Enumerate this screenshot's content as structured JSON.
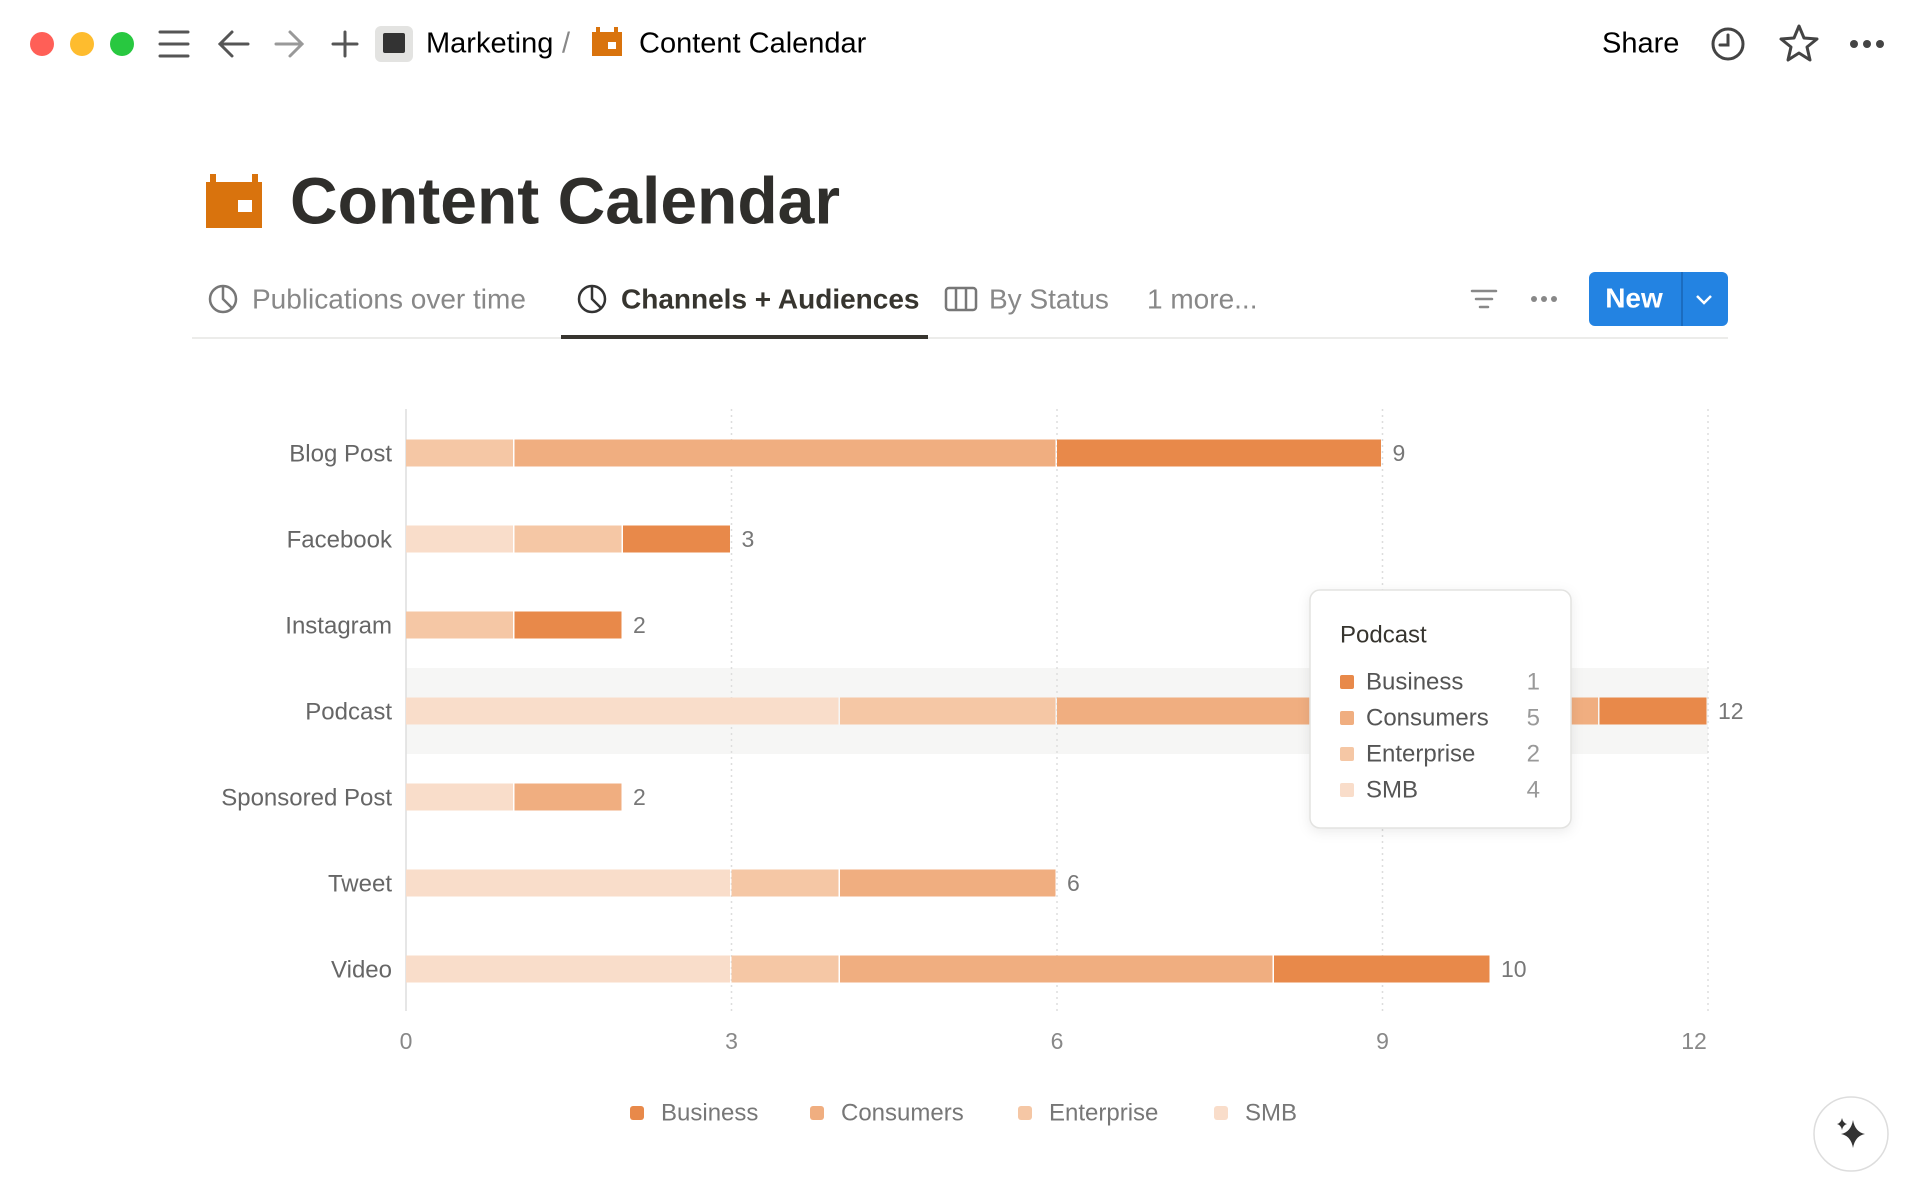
{
  "breadcrumb": {
    "parent": "Marketing",
    "separator": "/",
    "current": "Content Calendar"
  },
  "toolbar": {
    "share": "Share"
  },
  "page": {
    "title": "Content Calendar"
  },
  "tabs": [
    "Publications over time",
    "Channels + Audiences",
    "By Status",
    "1 more..."
  ],
  "actions": {
    "new": "New"
  },
  "chart_data": {
    "type": "bar",
    "orientation": "horizontal",
    "stacked": true,
    "categories": [
      "Blog Post",
      "Facebook",
      "Instagram",
      "Podcast",
      "Sponsored Post",
      "Tweet",
      "Video"
    ],
    "series": [
      {
        "name": "Business",
        "color": "#e8894a",
        "values": [
          3,
          1,
          1,
          1,
          0,
          0,
          2
        ]
      },
      {
        "name": "Consumers",
        "color": "#f0ae80",
        "values": [
          5,
          0,
          0,
          5,
          1,
          2,
          4
        ]
      },
      {
        "name": "Enterprise",
        "color": "#f5c7a5",
        "values": [
          1,
          1,
          1,
          2,
          0,
          1,
          1
        ]
      },
      {
        "name": "SMB",
        "color": "#f9ddca",
        "values": [
          0,
          1,
          0,
          4,
          1,
          3,
          3
        ]
      }
    ],
    "totals": [
      9,
      3,
      2,
      12,
      2,
      6,
      10
    ],
    "xlim": [
      0,
      12
    ],
    "xticks": [
      0,
      3,
      6,
      9,
      12
    ],
    "grid": true
  }
}
